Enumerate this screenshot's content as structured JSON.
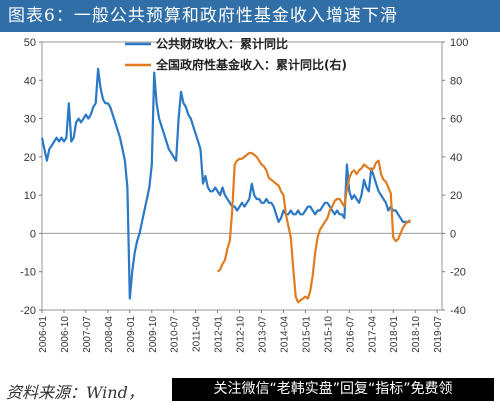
{
  "header": {
    "title": "图表6：一般公共预算和政府性基金收入增速下滑"
  },
  "footer": {
    "source": "资料来源：Wind，",
    "watermark": "关注微信“老韩实盘”回复“指标”免费领"
  },
  "colors": {
    "header_bg": "#2f6ea7",
    "series_public": "#2b78c5",
    "series_fund": "#e07b20"
  },
  "chart_data": {
    "type": "line",
    "title": "图表6：一般公共预算和政府性基金收入增速下滑",
    "x_ticks": [
      "2006-01",
      "2006-10",
      "2007-07",
      "2008-04",
      "2009-01",
      "2009-10",
      "2010-07",
      "2011-04",
      "2012-01",
      "2012-10",
      "2013-07",
      "2014-04",
      "2015-01",
      "2015-10",
      "2016-07",
      "2017-04",
      "2018-01",
      "2018-10",
      "2019-07"
    ],
    "x_range": [
      0,
      164
    ],
    "y_left": {
      "min": -20,
      "max": 50,
      "ticks": [
        -20,
        -10,
        0,
        10,
        20,
        30,
        40,
        50
      ]
    },
    "y_right": {
      "min": -40,
      "max": 100,
      "ticks": [
        -40,
        -20,
        0,
        20,
        40,
        60,
        80,
        100
      ]
    },
    "legend_position": "top-center",
    "series": [
      {
        "name": "公共财政收入：累计同比",
        "axis": "left",
        "points": [
          [
            0,
            25
          ],
          [
            1,
            22
          ],
          [
            2,
            19
          ],
          [
            3,
            22
          ],
          [
            4,
            23
          ],
          [
            5,
            24
          ],
          [
            6,
            25
          ],
          [
            7,
            24
          ],
          [
            8,
            25
          ],
          [
            9,
            24
          ],
          [
            10,
            25
          ],
          [
            11,
            34
          ],
          [
            12,
            24
          ],
          [
            13,
            25
          ],
          [
            14,
            29
          ],
          [
            15,
            30
          ],
          [
            16,
            29
          ],
          [
            17,
            30
          ],
          [
            18,
            31
          ],
          [
            19,
            30
          ],
          [
            20,
            31
          ],
          [
            21,
            33
          ],
          [
            22,
            34
          ],
          [
            23,
            43
          ],
          [
            24,
            38
          ],
          [
            25,
            35
          ],
          [
            26,
            34
          ],
          [
            27,
            34
          ],
          [
            28,
            33
          ],
          [
            29,
            31
          ],
          [
            30,
            29
          ],
          [
            31,
            27
          ],
          [
            32,
            25
          ],
          [
            33,
            22
          ],
          [
            34,
            19
          ],
          [
            35,
            12
          ],
          [
            36,
            -17
          ],
          [
            37,
            -10
          ],
          [
            38,
            -5
          ],
          [
            39,
            -2
          ],
          [
            40,
            0
          ],
          [
            41,
            3
          ],
          [
            42,
            6
          ],
          [
            43,
            9
          ],
          [
            44,
            12
          ],
          [
            45,
            18
          ],
          [
            46,
            42
          ],
          [
            47,
            34
          ],
          [
            48,
            30
          ],
          [
            49,
            28
          ],
          [
            50,
            26
          ],
          [
            51,
            24
          ],
          [
            52,
            22
          ],
          [
            53,
            21
          ],
          [
            54,
            20
          ],
          [
            55,
            19
          ],
          [
            56,
            30
          ],
          [
            57,
            37
          ],
          [
            58,
            34
          ],
          [
            59,
            33
          ],
          [
            60,
            31
          ],
          [
            61,
            30
          ],
          [
            62,
            28
          ],
          [
            63,
            26
          ],
          [
            64,
            24
          ],
          [
            65,
            22
          ],
          [
            66,
            13
          ],
          [
            67,
            15
          ],
          [
            68,
            12
          ],
          [
            69,
            11
          ],
          [
            70,
            11
          ],
          [
            71,
            12
          ],
          [
            72,
            11
          ],
          [
            73,
            10
          ],
          [
            74,
            12
          ],
          [
            75,
            10
          ],
          [
            76,
            9
          ],
          [
            77,
            8
          ],
          [
            78,
            7
          ],
          [
            79,
            7
          ],
          [
            80,
            6
          ],
          [
            81,
            7
          ],
          [
            82,
            8
          ],
          [
            83,
            7
          ],
          [
            84,
            8
          ],
          [
            85,
            9
          ],
          [
            86,
            13
          ],
          [
            87,
            10
          ],
          [
            88,
            9
          ],
          [
            89,
            9
          ],
          [
            90,
            8
          ],
          [
            91,
            8
          ],
          [
            92,
            9
          ],
          [
            93,
            8
          ],
          [
            94,
            8
          ],
          [
            95,
            7
          ],
          [
            96,
            5
          ],
          [
            97,
            3
          ],
          [
            98,
            4
          ],
          [
            99,
            6
          ],
          [
            100,
            5
          ],
          [
            101,
            5
          ],
          [
            102,
            6
          ],
          [
            103,
            5
          ],
          [
            104,
            5
          ],
          [
            105,
            6
          ],
          [
            106,
            5
          ],
          [
            107,
            5
          ],
          [
            108,
            6
          ],
          [
            109,
            7
          ],
          [
            110,
            7
          ],
          [
            111,
            6
          ],
          [
            112,
            5
          ],
          [
            113,
            6
          ],
          [
            114,
            6
          ],
          [
            115,
            7
          ],
          [
            116,
            8
          ],
          [
            117,
            8
          ],
          [
            118,
            7
          ],
          [
            119,
            6
          ],
          [
            120,
            5
          ],
          [
            121,
            6
          ],
          [
            122,
            5
          ],
          [
            123,
            5
          ],
          [
            124,
            4
          ],
          [
            125,
            18
          ],
          [
            126,
            11
          ],
          [
            127,
            9
          ],
          [
            128,
            10
          ],
          [
            129,
            9
          ],
          [
            130,
            8
          ],
          [
            131,
            10
          ],
          [
            132,
            14
          ],
          [
            133,
            12
          ],
          [
            134,
            11
          ],
          [
            135,
            17
          ],
          [
            136,
            15
          ],
          [
            137,
            13
          ],
          [
            138,
            11
          ],
          [
            139,
            10
          ],
          [
            140,
            9
          ],
          [
            141,
            8
          ],
          [
            142,
            6
          ],
          [
            143,
            7
          ],
          [
            144,
            6
          ],
          [
            145,
            6
          ],
          [
            146,
            5
          ],
          [
            147,
            4
          ],
          [
            148,
            3
          ],
          [
            149,
            3
          ],
          [
            150,
            3
          ],
          [
            151,
            3
          ]
        ]
      },
      {
        "name": "全国政府性基金收入：累计同比(右)",
        "axis": "right",
        "points": [
          [
            72,
            -20
          ],
          [
            73,
            -19
          ],
          [
            74,
            -16
          ],
          [
            75,
            -14
          ],
          [
            76,
            -8
          ],
          [
            77,
            -4
          ],
          [
            78,
            12
          ],
          [
            79,
            36
          ],
          [
            80,
            38
          ],
          [
            81,
            39
          ],
          [
            82,
            39
          ],
          [
            83,
            40
          ],
          [
            84,
            41
          ],
          [
            85,
            42
          ],
          [
            86,
            42
          ],
          [
            87,
            41
          ],
          [
            88,
            40
          ],
          [
            89,
            38
          ],
          [
            90,
            36
          ],
          [
            91,
            35
          ],
          [
            92,
            33
          ],
          [
            93,
            29
          ],
          [
            94,
            28
          ],
          [
            95,
            27
          ],
          [
            96,
            26
          ],
          [
            97,
            25
          ],
          [
            98,
            22
          ],
          [
            99,
            20
          ],
          [
            100,
            10
          ],
          [
            101,
            4
          ],
          [
            102,
            -2
          ],
          [
            103,
            -18
          ],
          [
            104,
            -33
          ],
          [
            105,
            -36
          ],
          [
            106,
            -35
          ],
          [
            107,
            -34
          ],
          [
            108,
            -33
          ],
          [
            109,
            -34
          ],
          [
            110,
            -30
          ],
          [
            111,
            -22
          ],
          [
            112,
            -10
          ],
          [
            113,
            -2
          ],
          [
            114,
            2
          ],
          [
            115,
            4
          ],
          [
            116,
            6
          ],
          [
            117,
            8
          ],
          [
            118,
            12
          ],
          [
            119,
            14
          ],
          [
            120,
            17
          ],
          [
            121,
            18
          ],
          [
            122,
            18
          ],
          [
            123,
            16
          ],
          [
            124,
            14
          ],
          [
            125,
            23
          ],
          [
            126,
            29
          ],
          [
            127,
            32
          ],
          [
            128,
            33
          ],
          [
            129,
            31
          ],
          [
            130,
            33
          ],
          [
            131,
            34
          ],
          [
            132,
            36
          ],
          [
            133,
            35
          ],
          [
            134,
            34
          ],
          [
            135,
            33
          ],
          [
            136,
            34
          ],
          [
            137,
            37
          ],
          [
            138,
            38
          ],
          [
            139,
            31
          ],
          [
            140,
            28
          ],
          [
            141,
            27
          ],
          [
            142,
            24
          ],
          [
            143,
            21
          ],
          [
            144,
            -2
          ],
          [
            145,
            -4
          ],
          [
            146,
            -3
          ],
          [
            147,
            0
          ],
          [
            148,
            3
          ],
          [
            149,
            5
          ],
          [
            150,
            6
          ],
          [
            151,
            7
          ]
        ]
      }
    ]
  }
}
